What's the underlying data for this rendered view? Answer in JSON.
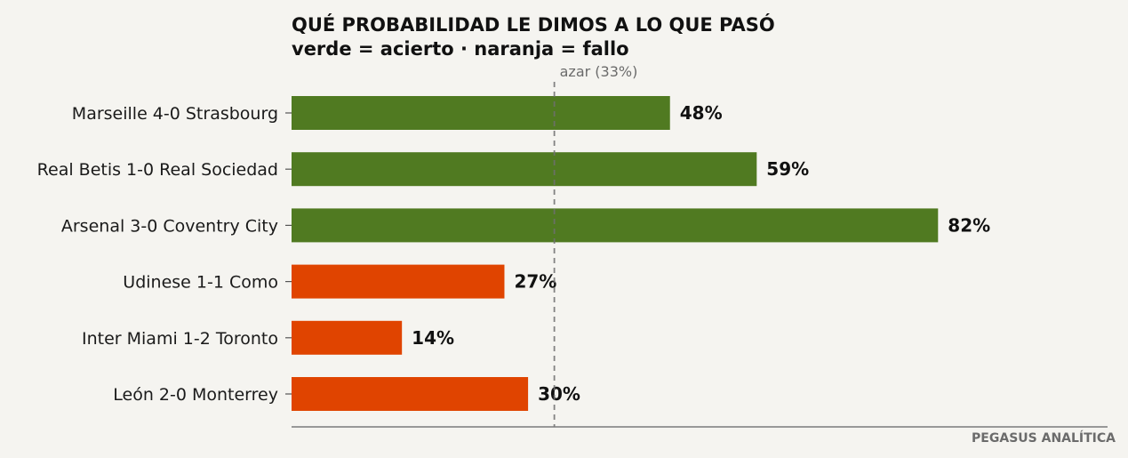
{
  "chart_data": {
    "type": "bar",
    "orientation": "horizontal",
    "title": "QUÉ PROBABILIDAD LE DIMOS A LO QUE PASÓ",
    "subtitle": "verde = acierto · naranja = fallo",
    "categories": [
      "Marseille 4-0 Strasbourg",
      "Real Betis 1-0 Real Sociedad",
      "Arsenal 3-0 Coventry City",
      "Udinese 1-1 Como",
      "Inter Miami 1-2 Toronto",
      "León 2-0 Monterrey"
    ],
    "values": [
      48,
      59,
      82,
      27,
      14,
      30
    ],
    "value_labels": [
      "48%",
      "59%",
      "82%",
      "27%",
      "14%",
      "30%"
    ],
    "outcome": [
      "acierto",
      "acierto",
      "acierto",
      "fallo",
      "fallo",
      "fallo"
    ],
    "colors": {
      "acierto": "#507a21",
      "fallo": "#e04400"
    },
    "reference_line": {
      "value": 33.33,
      "label": "azar (33%)",
      "style": "dashed"
    },
    "xlim": [
      0,
      103.5
    ],
    "xlabel": "",
    "ylabel": "",
    "grid": false,
    "legend": "none"
  },
  "footer": {
    "source": "PEGASUS ANALÍTICA"
  }
}
